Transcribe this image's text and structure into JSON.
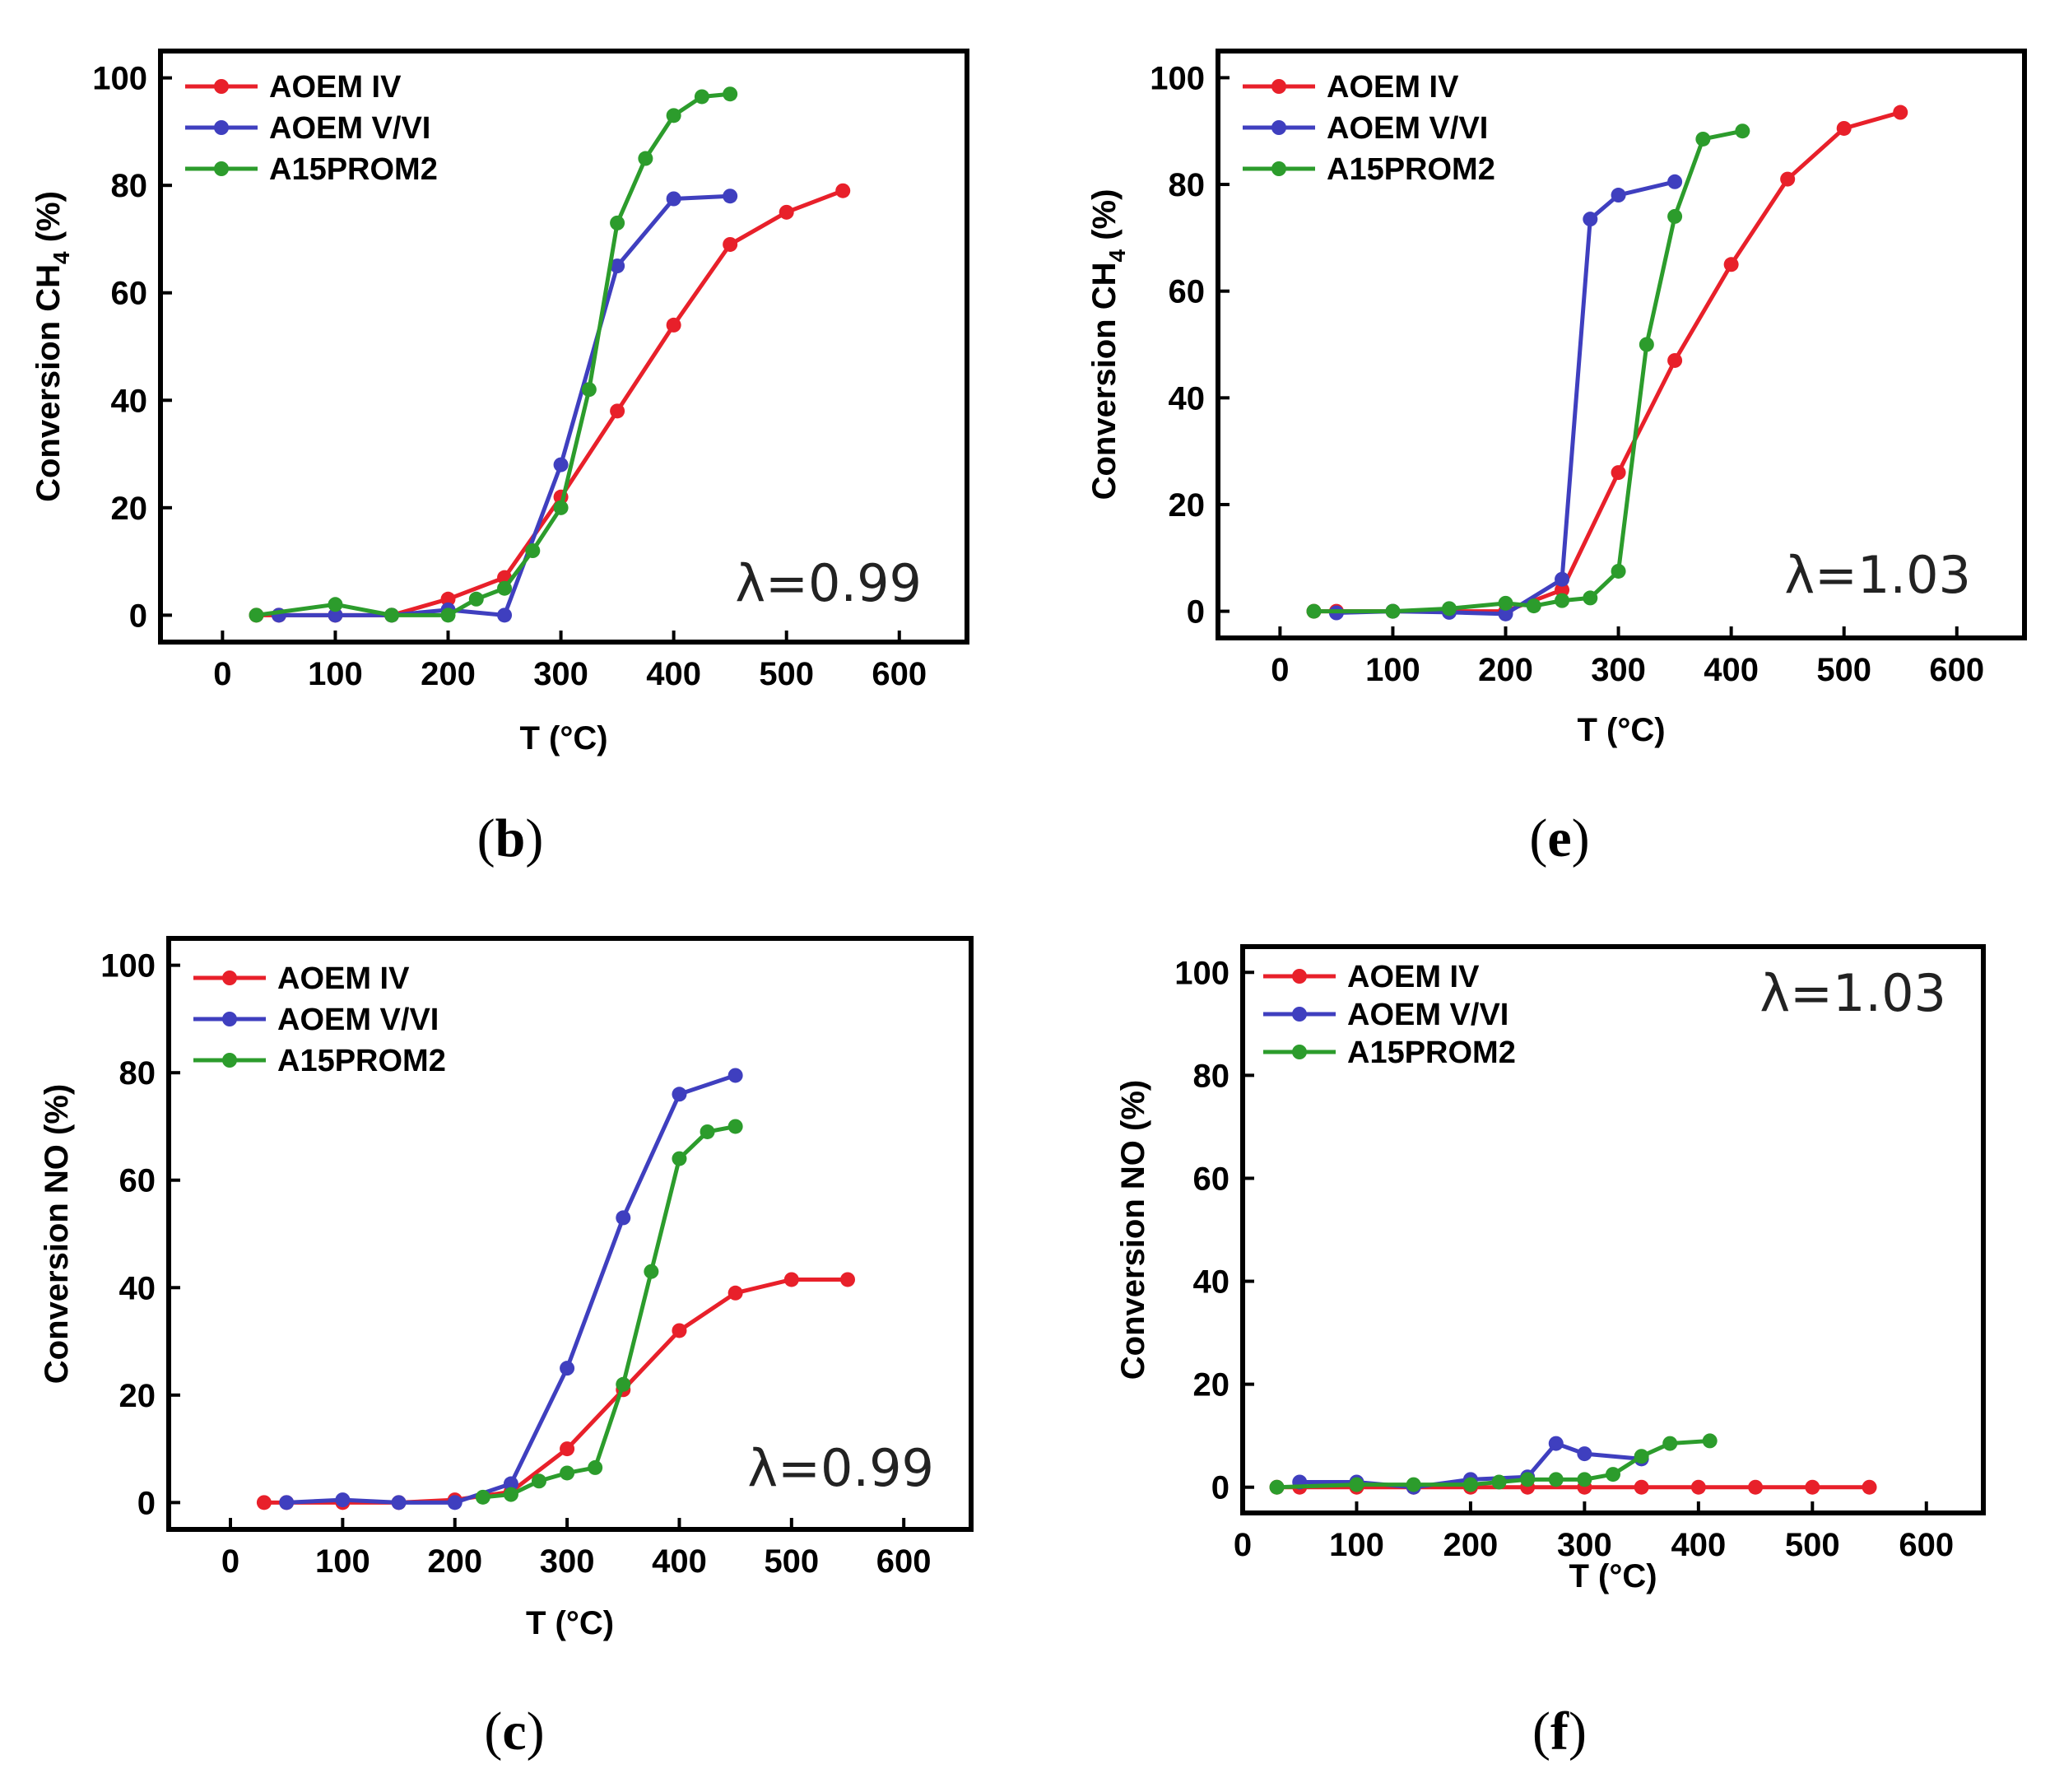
{
  "figure": {
    "panel_captions": [
      "(b)",
      "(e)",
      "(c)",
      "(f)"
    ]
  },
  "colors": {
    "AOEM IV": "#e8202a",
    "AOEM V/VI": "#3f3fbf",
    "A15PROM2": "#2c9c2c",
    "axis": "#000000"
  },
  "chart_data": [
    {
      "id": "b",
      "type": "line",
      "caption": {
        "open": "(",
        "letter": "b",
        "close": ")"
      },
      "annotation": "λ=0.99",
      "xlabel": "T (°C)",
      "ylabel": {
        "main": "Conversion CH",
        "sub": "4",
        "tail": " (%)"
      },
      "xlim": [
        -55,
        660
      ],
      "ylim": [
        -5,
        105
      ],
      "xticks": [
        0,
        100,
        200,
        300,
        400,
        500,
        600
      ],
      "yticks": [
        0,
        20,
        40,
        60,
        80,
        100
      ],
      "legend": [
        "AOEM IV",
        "AOEM V/VI",
        "A15PROM2"
      ],
      "series": [
        {
          "name": "AOEM IV",
          "x": [
            30,
            50,
            100,
            150,
            200,
            250,
            300,
            350,
            400,
            450,
            500,
            550
          ],
          "y": [
            0,
            0,
            0,
            0,
            3,
            7,
            22,
            38,
            54,
            69,
            75,
            79
          ]
        },
        {
          "name": "AOEM V/VI",
          "x": [
            50,
            100,
            150,
            200,
            250,
            300,
            350,
            400,
            450
          ],
          "y": [
            0,
            0,
            0,
            1,
            0,
            28,
            65,
            77.5,
            78
          ]
        },
        {
          "name": "A15PROM2",
          "x": [
            30,
            100,
            150,
            200,
            225,
            250,
            275,
            300,
            325,
            350,
            375,
            400,
            425,
            450
          ],
          "y": [
            0,
            2,
            0,
            0,
            3,
            5,
            12,
            20,
            42,
            73,
            85,
            93,
            96.5,
            97
          ]
        }
      ]
    },
    {
      "id": "e",
      "type": "line",
      "caption": {
        "open": "(",
        "letter": "e",
        "close": ")"
      },
      "annotation": "λ=1.03",
      "xlabel": "T (°C)",
      "ylabel": {
        "main": "Conversion CH",
        "sub": "4",
        "tail": " (%)"
      },
      "xlim": [
        -55,
        660
      ],
      "ylim": [
        -5,
        105
      ],
      "xticks": [
        0,
        100,
        200,
        300,
        400,
        500,
        600
      ],
      "yticks": [
        0,
        20,
        40,
        60,
        80,
        100
      ],
      "legend": [
        "AOEM IV",
        "AOEM V/VI",
        "A15PROM2"
      ],
      "series": [
        {
          "name": "AOEM IV",
          "x": [
            30,
            50,
            100,
            150,
            200,
            250,
            300,
            350,
            400,
            450,
            500,
            550
          ],
          "y": [
            0,
            0,
            0,
            0,
            0,
            4,
            26,
            47,
            65,
            81,
            90.5,
            93.5
          ]
        },
        {
          "name": "AOEM V/VI",
          "x": [
            50,
            100,
            150,
            200,
            250,
            275,
            300,
            350
          ],
          "y": [
            -0.3,
            0,
            -0.2,
            -0.5,
            6,
            73.5,
            78,
            80.5
          ]
        },
        {
          "name": "A15PROM2",
          "x": [
            30,
            100,
            150,
            200,
            225,
            250,
            275,
            300,
            325,
            350,
            375,
            410
          ],
          "y": [
            0,
            0,
            0.5,
            1.5,
            1,
            2,
            2.5,
            7.5,
            50,
            74,
            88.5,
            90
          ]
        }
      ]
    },
    {
      "id": "c",
      "type": "line",
      "caption": {
        "open": "(",
        "letter": "c",
        "close": ")"
      },
      "annotation": "λ=0.99",
      "xlabel": "T (°C)",
      "ylabel": {
        "main": "Conversion NO",
        "sub": "",
        "tail": " (%)"
      },
      "xlim": [
        -55,
        660
      ],
      "ylim": [
        -5,
        105
      ],
      "xticks": [
        0,
        100,
        200,
        300,
        400,
        500,
        600
      ],
      "yticks": [
        0,
        20,
        40,
        60,
        80,
        100
      ],
      "legend": [
        "AOEM IV",
        "AOEM V/VI",
        "A15PROM2"
      ],
      "series": [
        {
          "name": "AOEM IV",
          "x": [
            30,
            50,
            100,
            150,
            200,
            250,
            300,
            350,
            400,
            450,
            500,
            550
          ],
          "y": [
            0,
            0,
            0,
            0,
            0.5,
            2,
            10,
            21,
            32,
            39,
            41.5,
            41.5
          ]
        },
        {
          "name": "AOEM V/VI",
          "x": [
            50,
            100,
            150,
            200,
            250,
            300,
            350,
            400,
            450
          ],
          "y": [
            0,
            0.5,
            0,
            0,
            3.5,
            25,
            53,
            76,
            79.5
          ]
        },
        {
          "name": "A15PROM2",
          "x": [
            225,
            250,
            275,
            300,
            325,
            350,
            375,
            400,
            425,
            450
          ],
          "y": [
            1,
            1.5,
            4,
            5.5,
            6.5,
            22,
            43,
            64,
            69,
            70
          ]
        }
      ]
    },
    {
      "id": "f",
      "type": "line",
      "caption": {
        "open": "(",
        "letter": "f",
        "close": ")"
      },
      "annotation": "λ=1.03",
      "xlabel": "T (°C)",
      "ylabel": {
        "main": "Conversion NO",
        "sub": "",
        "tail": " (%)"
      },
      "xlim": [
        0,
        650
      ],
      "ylim": [
        -5,
        105
      ],
      "xticks": [
        0,
        100,
        200,
        300,
        400,
        500,
        600
      ],
      "yticks": [
        0,
        20,
        40,
        60,
        80,
        100
      ],
      "legend": [
        "AOEM IV",
        "AOEM V/VI",
        "A15PROM2"
      ],
      "series": [
        {
          "name": "AOEM IV",
          "x": [
            30,
            50,
            100,
            150,
            200,
            250,
            300,
            350,
            400,
            450,
            500,
            550
          ],
          "y": [
            0,
            0,
            0,
            0,
            0,
            0,
            0,
            0,
            0,
            0,
            0,
            0
          ]
        },
        {
          "name": "AOEM V/VI",
          "x": [
            50,
            100,
            150,
            200,
            250,
            275,
            300,
            350
          ],
          "y": [
            1,
            1,
            0,
            1.5,
            2,
            8.5,
            6.5,
            5.5
          ]
        },
        {
          "name": "A15PROM2",
          "x": [
            30,
            100,
            150,
            200,
            225,
            250,
            275,
            300,
            325,
            350,
            375,
            410
          ],
          "y": [
            0,
            0.5,
            0.5,
            0.5,
            1,
            1.5,
            1.5,
            1.5,
            2.5,
            6,
            8.5,
            9
          ]
        }
      ]
    }
  ]
}
